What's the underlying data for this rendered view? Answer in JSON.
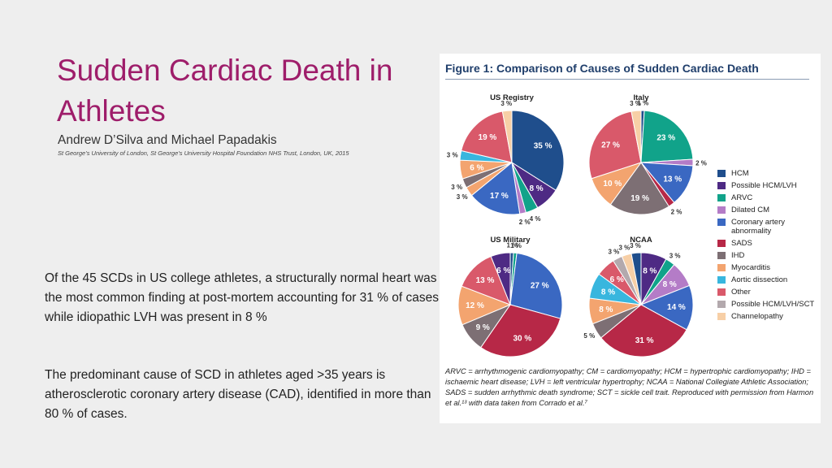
{
  "slide": {
    "title": "Sudden Cardiac Death in Athletes",
    "authors": "Andrew D’Silva and Michael Papadakis",
    "affiliation": "St George’s University of London, St George’s University Hospital Foundation NHS Trust, London, UK, 2015",
    "paragraph1": "Of the 45 SCDs in US college athletes, a structurally normal heart was the most common finding at post-mortem accounting for 31 % of cases, while idiopathic LVH was present in 8 %",
    "paragraph2": "The predominant cause of SCD in athletes aged >35 years is atherosclerotic coronary artery disease (CAD), identified in more than 80 % of cases."
  },
  "figure": {
    "title": "Figure 1: Comparison of Causes of Sudden Cardiac Death",
    "footnote": "ARVC = arrhythmogenic cardiomyopathy; CM = cardiomyopathy; HCM = hypertrophic cardiomyopathy; IHD = ischaemic heart disease; LVH = left ventricular hypertrophy; NCAA = National Collegiate Athletic Association; SADS = sudden arrhythmic death syndrome; SCT = sickle cell trait. Reproduced with permission from Harmon et al.¹³ with data taken from Corrado et al.⁷"
  },
  "colors": {
    "HCM": "#1f4e8c",
    "Possible HCM/LVH": "#4e2a84",
    "ARVC": "#11a38a",
    "Dilated CM": "#b47cc7",
    "Coronary artery abnormality": "#3a68c2",
    "SADS": "#b72847",
    "IHD": "#7d6f74",
    "Myocarditis": "#f3a46f",
    "Aortic dissection": "#38b6de",
    "Other": "#d9596a",
    "Possible HCM/LVH/SCT": "#b3a9ad",
    "Channelopathy": "#f7cfa6"
  },
  "chart_data": [
    {
      "type": "pie",
      "title": "US Registry",
      "slices": [
        {
          "label": "HCM",
          "value": 35,
          "text": "35 %"
        },
        {
          "label": "Possible HCM/LVH",
          "value": 8,
          "text": "8 %"
        },
        {
          "label": "ARVC",
          "value": 4,
          "text": "4 %"
        },
        {
          "label": "Dilated CM",
          "value": 2,
          "text": "2 %"
        },
        {
          "label": "Coronary artery abnormality",
          "value": 17,
          "text": "17 %"
        },
        {
          "label": "Myocarditis",
          "value": 3,
          "text": "3 %"
        },
        {
          "label": "IHD",
          "value": 3,
          "text": "3 %"
        },
        {
          "label": "Myocarditis",
          "value": 6,
          "text": "6 %"
        },
        {
          "label": "Aortic dissection",
          "value": 3,
          "text": "3 %"
        },
        {
          "label": "Other",
          "value": 19,
          "text": "19 %"
        },
        {
          "label": "Channelopathy",
          "value": 3,
          "text": "3 %"
        }
      ]
    },
    {
      "type": "pie",
      "title": "Italy",
      "slices": [
        {
          "label": "HCM",
          "value": 1,
          "text": "1 %"
        },
        {
          "label": "ARVC",
          "value": 23,
          "text": "23 %"
        },
        {
          "label": "Dilated CM",
          "value": 2,
          "text": "2 %"
        },
        {
          "label": "Coronary artery abnormality",
          "value": 13,
          "text": "13 %"
        },
        {
          "label": "SADS",
          "value": 2,
          "text": "2 %"
        },
        {
          "label": "IHD",
          "value": 19,
          "text": "19 %"
        },
        {
          "label": "Myocarditis",
          "value": 10,
          "text": "10 %"
        },
        {
          "label": "Other",
          "value": 27,
          "text": "27 %"
        },
        {
          "label": "Channelopathy",
          "value": 3,
          "text": "3 %"
        }
      ]
    },
    {
      "type": "pie",
      "title": "US Military",
      "slices": [
        {
          "label": "HCM",
          "value": 1,
          "text": "1 %"
        },
        {
          "label": "ARVC",
          "value": 1,
          "text": "1 %"
        },
        {
          "label": "Coronary artery abnormality",
          "value": 27,
          "text": "27 %"
        },
        {
          "label": "SADS",
          "value": 30,
          "text": "30 %"
        },
        {
          "label": "IHD",
          "value": 9,
          "text": "9 %"
        },
        {
          "label": "Myocarditis",
          "value": 12,
          "text": "12 %"
        },
        {
          "label": "Other",
          "value": 13,
          "text": "13 %"
        },
        {
          "label": "Possible HCM/LVH",
          "value": 6,
          "text": "6 %"
        }
      ]
    },
    {
      "type": "pie",
      "title": "NCAA",
      "slices": [
        {
          "label": "Possible HCM/LVH",
          "value": 8,
          "text": "8 %"
        },
        {
          "label": "ARVC",
          "value": 3,
          "text": "3 %"
        },
        {
          "label": "Dilated CM",
          "value": 8,
          "text": "8 %"
        },
        {
          "label": "Coronary artery abnormality",
          "value": 14,
          "text": "14 %"
        },
        {
          "label": "SADS",
          "value": 31,
          "text": "31 %"
        },
        {
          "label": "IHD",
          "value": 5,
          "text": "5 %"
        },
        {
          "label": "Myocarditis",
          "value": 8,
          "text": "8 %"
        },
        {
          "label": "Aortic dissection",
          "value": 8,
          "text": "8 %"
        },
        {
          "label": "Other",
          "value": 6,
          "text": "6 %"
        },
        {
          "label": "Possible HCM/LVH/SCT",
          "value": 3,
          "text": "3 %"
        },
        {
          "label": "Channelopathy",
          "value": 3,
          "text": "3 %"
        },
        {
          "label": "HCM",
          "value": 3,
          "text": "3 %"
        }
      ]
    }
  ],
  "legend": [
    {
      "label": "HCM",
      "key": "HCM"
    },
    {
      "label": "Possible HCM/LVH",
      "key": "Possible HCM/LVH"
    },
    {
      "label": "ARVC",
      "key": "ARVC"
    },
    {
      "label": "Dilated CM",
      "key": "Dilated CM"
    },
    {
      "label": "Coronary artery abnormality",
      "key": "Coronary artery abnormality"
    },
    {
      "label": "SADS",
      "key": "SADS"
    },
    {
      "label": "IHD",
      "key": "IHD"
    },
    {
      "label": "Myocarditis",
      "key": "Myocarditis"
    },
    {
      "label": "Aortic dissection",
      "key": "Aortic dissection"
    },
    {
      "label": "Other",
      "key": "Other"
    },
    {
      "label": "Possible HCM/LVH/SCT",
      "key": "Possible HCM/LVH/SCT"
    },
    {
      "label": "Channelopathy",
      "key": "Channelopathy"
    }
  ]
}
